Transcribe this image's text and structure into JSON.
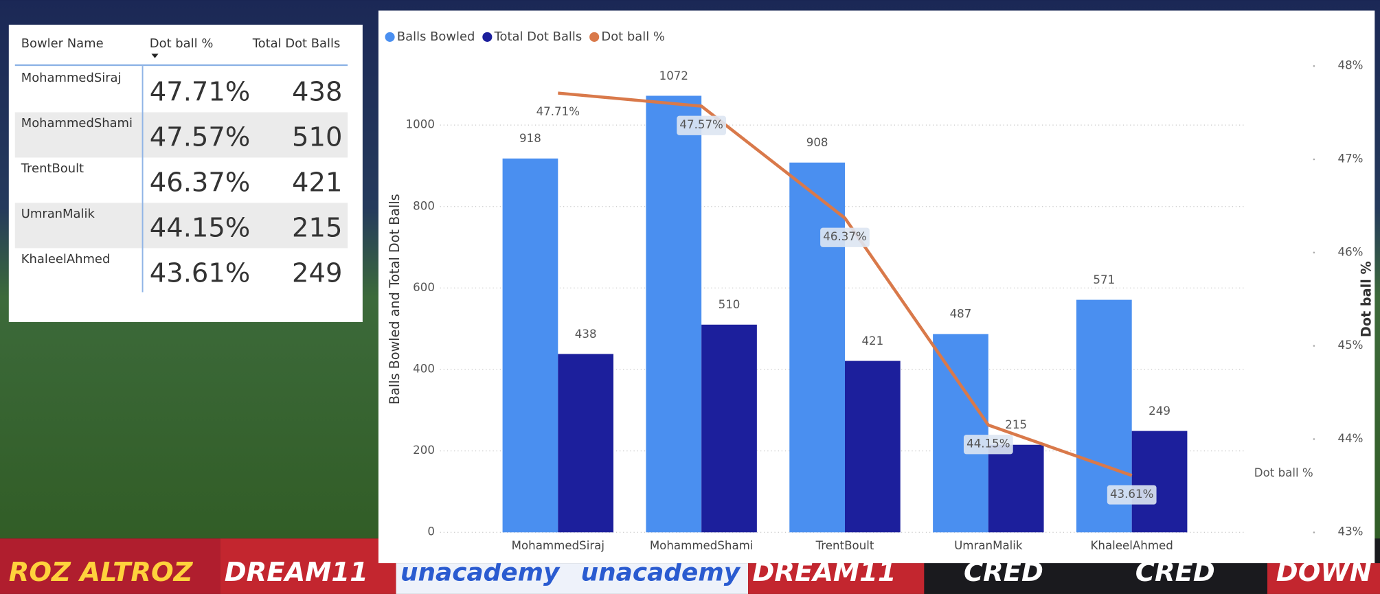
{
  "background": {
    "banners": [
      "ROZ ALTROZ",
      "DREAM11",
      "unacademy",
      "unacademy",
      "DREAM11",
      "CRED",
      "CRED",
      "DOWN"
    ]
  },
  "table": {
    "columns": [
      "Bowler Name",
      "Dot ball %",
      "Total Dot Balls"
    ],
    "rows": [
      [
        "MohammedSiraj",
        "47.71%",
        438
      ],
      [
        "MohammedShami",
        "47.57%",
        510
      ],
      [
        "TrentBoult",
        "46.37%",
        421
      ],
      [
        "UmranMalik",
        "44.15%",
        215
      ],
      [
        "KhaleelAhmed",
        "43.61%",
        249
      ]
    ]
  },
  "chart_data": {
    "type": "combo",
    "legend_position": "top-left",
    "grid": true,
    "categories": [
      "MohammedSiraj",
      "MohammedShami",
      "TrentBoult",
      "UmranMalik",
      "KhaleelAhmed"
    ],
    "series": [
      {
        "name": "Balls Bowled",
        "type": "bar",
        "color": "#4a8ff0",
        "values": [
          918,
          1072,
          908,
          487,
          571
        ]
      },
      {
        "name": "Total Dot Balls",
        "type": "bar",
        "color": "#1c1f9c",
        "values": [
          438,
          510,
          421,
          215,
          249
        ]
      },
      {
        "name": "Dot ball %",
        "type": "line",
        "axis": "y2",
        "color": "#d9794a",
        "values": [
          47.71,
          47.57,
          46.37,
          44.15,
          43.61
        ],
        "value_labels": [
          "47.71%",
          "47.57%",
          "46.37%",
          "44.15%",
          "43.61%"
        ]
      }
    ],
    "ylabel": "Balls Bowled and Total Dot Balls",
    "y2label": "Dot ball %",
    "ylim": [
      0,
      1145
    ],
    "yticks": [
      0,
      200,
      400,
      600,
      800,
      1000
    ],
    "y2lim": [
      43,
      48
    ],
    "y2ticks": [
      {
        "value": 43,
        "label": "43%"
      },
      {
        "value": 44,
        "label": "44%"
      },
      {
        "value": 45,
        "label": "45%"
      },
      {
        "value": 46,
        "label": "46%"
      },
      {
        "value": 47,
        "label": "47%"
      },
      {
        "value": 48,
        "label": "48%"
      }
    ]
  }
}
